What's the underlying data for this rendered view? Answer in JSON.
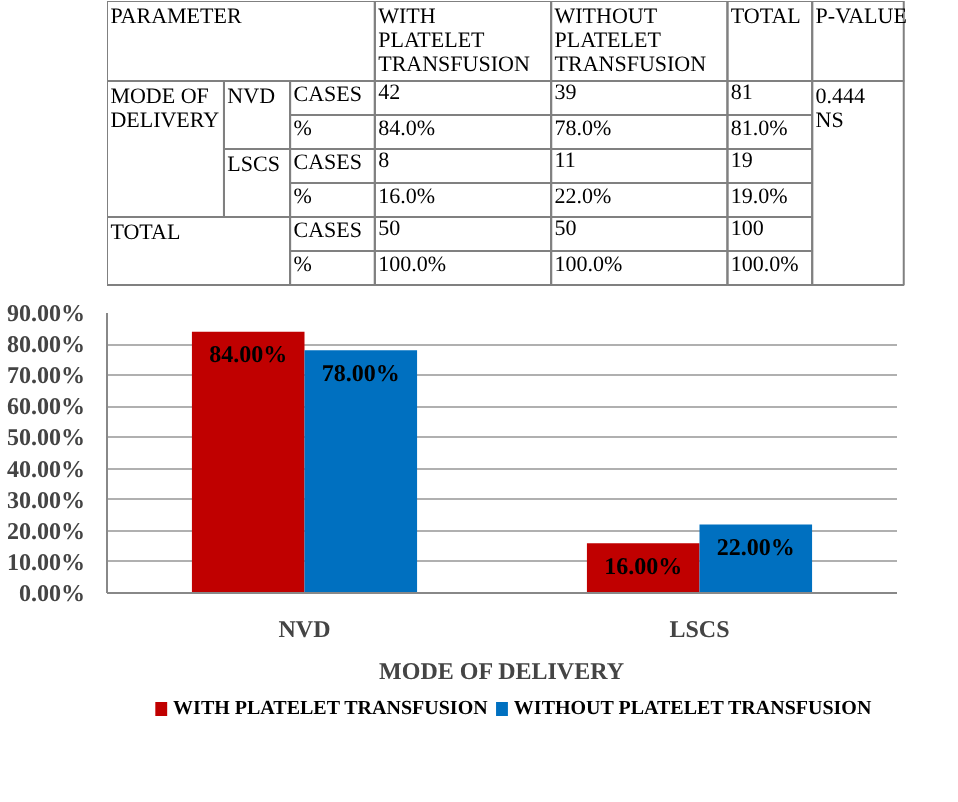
{
  "chart_data": [
    {
      "type": "other",
      "annotations": [
        "PARAMETER",
        "WITH PLATELET TRANSFUSION",
        "WITHOUT PLATELET TRANSFUSION",
        "TOTAL",
        "P-VALUE",
        "MODE OF DELIVERY",
        "NVD",
        "CASES",
        "42",
        "39",
        "81",
        "0.444 NS",
        "%",
        "84.0%",
        "78.0%",
        "81.0%",
        "LSCS",
        "CASES",
        "8",
        "11",
        "19",
        "%",
        "16.0%",
        "22.0%",
        "19.0%",
        "TOTAL",
        "CASES",
        "50",
        "50",
        "100",
        "%",
        "100.0%",
        "100.0%",
        "100.0%"
      ]
    },
    {
      "type": "bar",
      "xlabel": "MODE OF DELIVERY",
      "categories": [
        "NVD",
        "LSCS"
      ],
      "series": [
        {
          "name": "WITH PLATELET TRANSFUSION",
          "color": "#c00000",
          "values": [
            84,
            16
          ],
          "value_labels": [
            "84.00%",
            "16.00%"
          ]
        },
        {
          "name": "WITHOUT PLATELET TRANSFUSION",
          "color": "#0070c0",
          "values": [
            78,
            22
          ],
          "value_labels": [
            "78.00%",
            "22.00%"
          ]
        }
      ],
      "ylim": [
        0,
        90
      ],
      "yticks": [
        {
          "value": 0,
          "label": "0.00%"
        },
        {
          "value": 10,
          "label": "10.00%"
        },
        {
          "value": 20,
          "label": "20.00%"
        },
        {
          "value": 30,
          "label": "30.00%"
        },
        {
          "value": 40,
          "label": "40.00%"
        },
        {
          "value": 50,
          "label": "50.00%"
        },
        {
          "value": 60,
          "label": "60.00%"
        },
        {
          "value": 70,
          "label": "70.00%"
        },
        {
          "value": 80,
          "label": "80.00%"
        },
        {
          "value": 90,
          "label": "90.00%"
        }
      ],
      "grid": "y",
      "legend": "bottom"
    }
  ]
}
